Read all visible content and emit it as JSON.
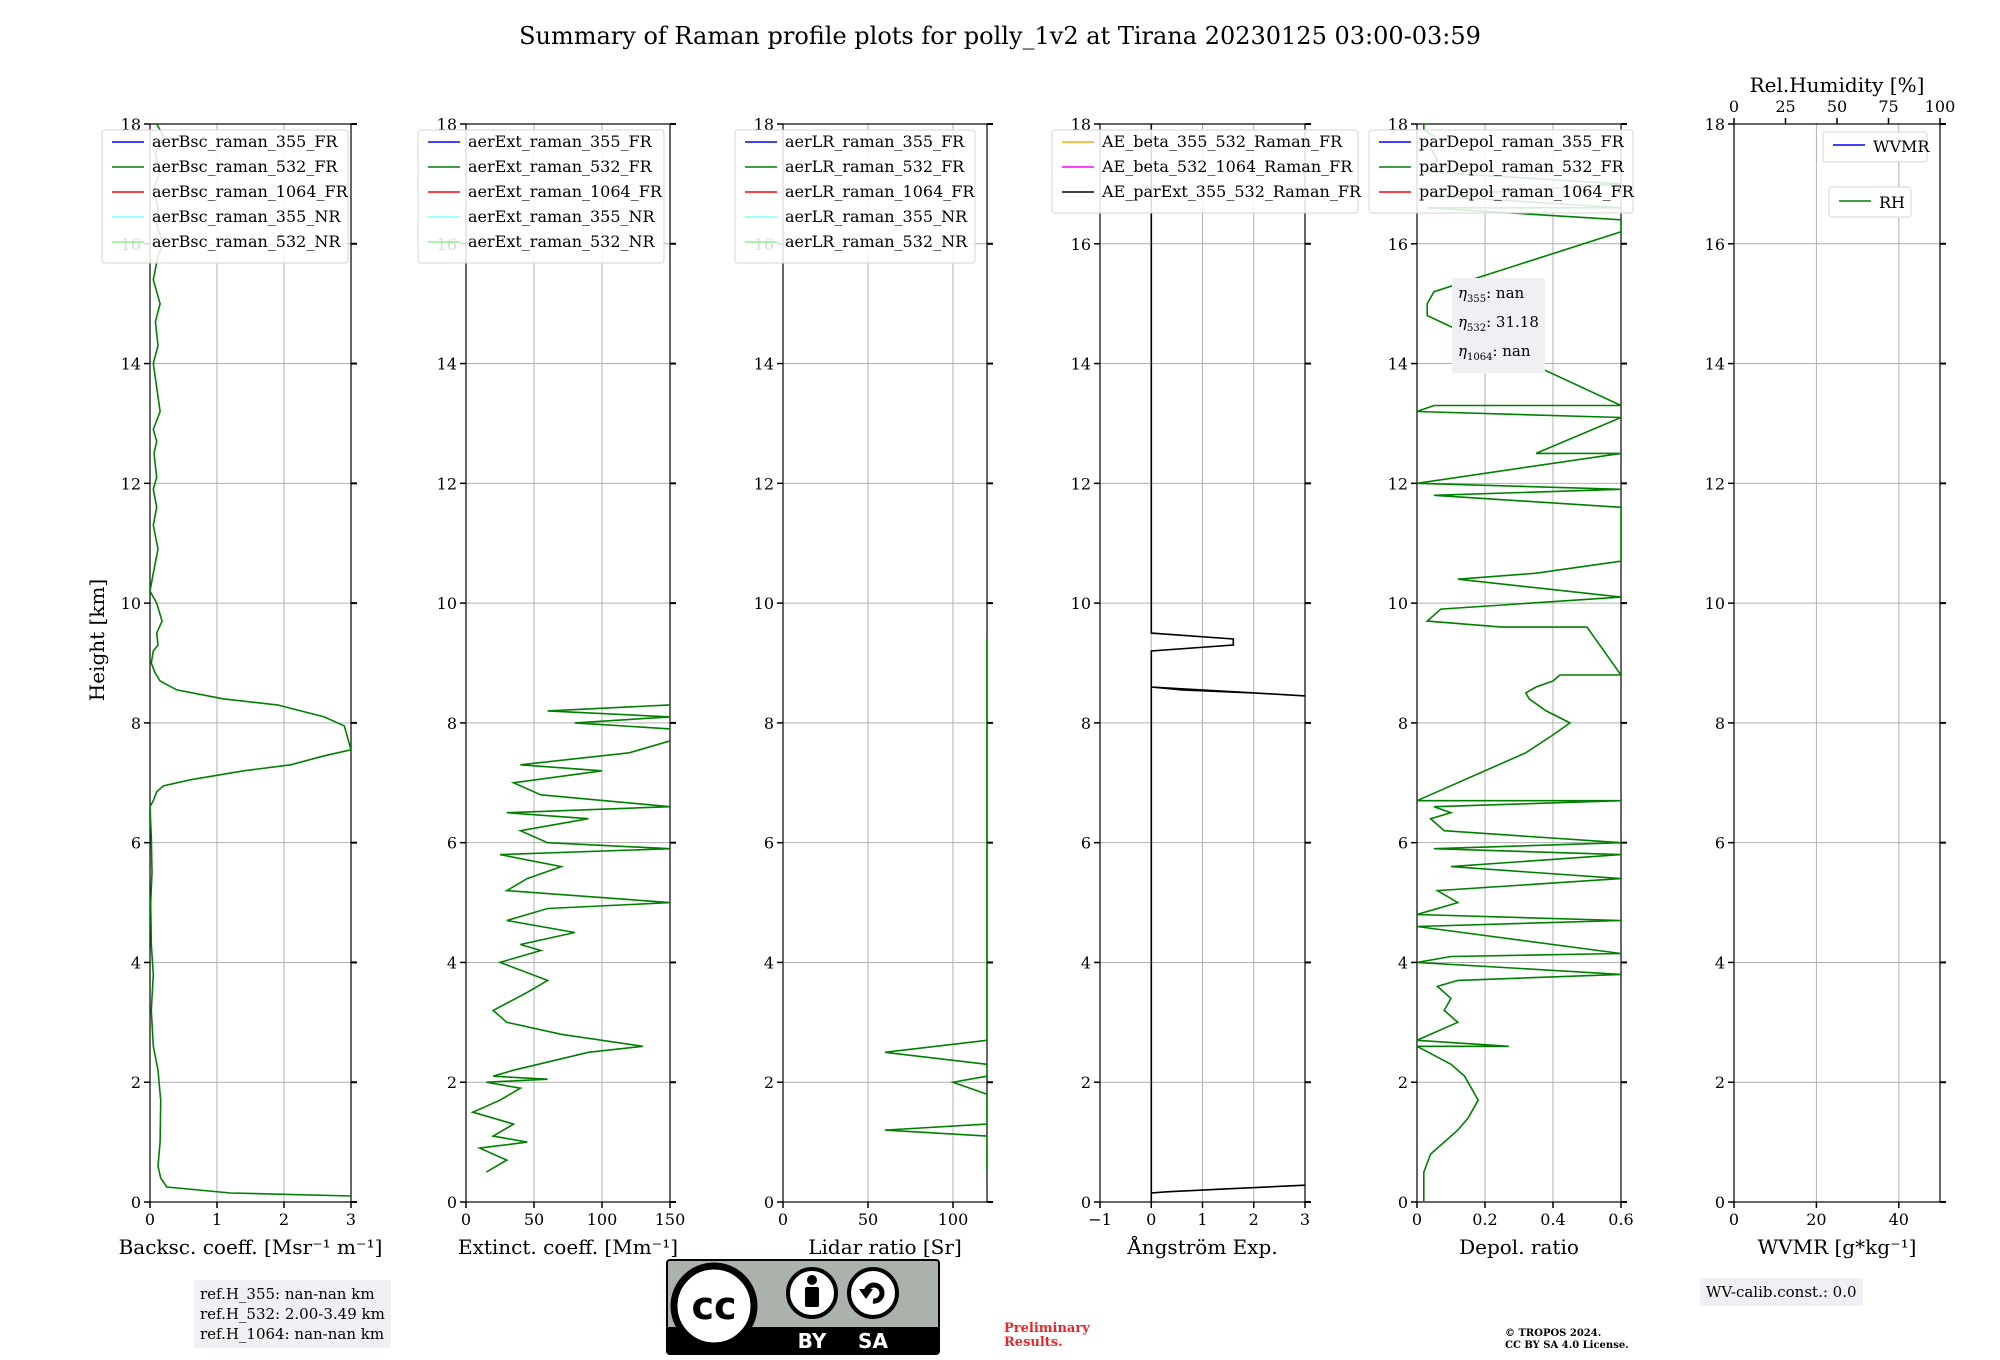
{
  "figure": {
    "title": "Summary of Raman profile plots for polly_1v2 at Tirana 20230125 03:00-03:59",
    "ylabel": "Height [km]",
    "ref_heights": [
      "ref.H_355: nan-nan km",
      "ref.H_532: 2.00-3.49 km",
      "ref.H_1064: nan-nan km"
    ],
    "wv_calib": "WV-calib.const.: 0.0",
    "preliminary": [
      "Preliminary",
      "Results."
    ],
    "copyright": [
      "© TROPOS 2024.",
      "CC BY SA 4.0 License."
    ],
    "license_badge": {
      "symbol": "cc",
      "by": "BY",
      "sa": "SA"
    },
    "depol_eta": [
      {
        "sym": "η",
        "sub": "355",
        "text": ": nan"
      },
      {
        "sym": "η",
        "sub": "532",
        "text": ": 31.18"
      },
      {
        "sym": "η",
        "sub": "1064",
        "text": ": nan"
      }
    ]
  },
  "colors": {
    "blue": "#0000ff",
    "green": "#008000",
    "red": "#ff0000",
    "cyan": "#7fffff",
    "lightgreen": "#90ee90",
    "orange": "#ffa500",
    "magenta": "#ff00ff",
    "black": "#000000"
  },
  "chart_data": [
    {
      "type": "line",
      "xlabel": "Backsc. coeff. [Msr⁻¹ m⁻¹]",
      "xlim": [
        0,
        3
      ],
      "xticks": [
        0,
        1,
        2,
        3
      ],
      "ylim": [
        0,
        18
      ],
      "yticks": [
        0,
        2,
        4,
        6,
        8,
        10,
        12,
        14,
        16,
        18
      ],
      "grid": true,
      "legend": "top-left",
      "series": [
        {
          "name": "aerBsc_raman_355_FR",
          "color": "#0000ff",
          "x": [],
          "y": []
        },
        {
          "name": "aerBsc_raman_532_FR",
          "color": "#008000",
          "x": [
            3.0,
            1.2,
            0.25,
            0.16,
            0.12,
            0.15,
            0.16,
            0.12,
            0.05,
            0.02,
            0.05,
            0.02,
            0.01,
            0.03,
            0.02,
            0.0,
            0.05,
            0.1,
            0.2,
            0.6,
            1.4,
            2.1,
            2.6,
            3.0,
            2.9,
            2.6,
            1.9,
            1.1,
            0.4,
            0.15,
            0.07,
            0.02,
            0.05,
            0.12,
            0.1,
            0.18,
            0.1,
            0.0,
            0.05,
            0.12,
            0.05,
            0.1,
            0.05,
            0.1,
            0.06,
            0.1,
            0.05,
            0.15,
            0.1,
            0.05,
            0.12,
            0.08,
            0.15,
            0.05,
            0.12,
            0.2,
            0.1,
            0.12,
            0.05,
            0.15,
            0.08,
            0.2,
            0.1
          ],
          "y": [
            0.1,
            0.15,
            0.25,
            0.4,
            0.6,
            1.0,
            1.7,
            2.2,
            2.6,
            3.2,
            3.8,
            4.3,
            5.0,
            5.5,
            6.1,
            6.6,
            6.7,
            6.85,
            6.95,
            7.05,
            7.2,
            7.3,
            7.45,
            7.55,
            7.95,
            8.1,
            8.3,
            8.4,
            8.55,
            8.7,
            8.85,
            9.0,
            9.2,
            9.3,
            9.5,
            9.7,
            10.0,
            10.2,
            10.5,
            10.9,
            11.3,
            11.6,
            11.9,
            12.1,
            12.5,
            12.7,
            12.9,
            13.2,
            13.6,
            14.0,
            14.3,
            14.7,
            15.0,
            15.4,
            15.8,
            16.0,
            16.3,
            16.6,
            16.9,
            17.2,
            17.5,
            17.8,
            18.0
          ]
        },
        {
          "name": "aerBsc_raman_1064_FR",
          "color": "#ff0000",
          "x": [],
          "y": []
        },
        {
          "name": "aerBsc_raman_355_NR",
          "color": "#7fffff",
          "x": [],
          "y": []
        },
        {
          "name": "aerBsc_raman_532_NR",
          "color": "#90ee90",
          "x": [],
          "y": []
        }
      ]
    },
    {
      "type": "line",
      "xlabel": "Extinct. coeff. [Mm⁻¹]",
      "xlim": [
        0,
        150
      ],
      "xticks": [
        0,
        50,
        100,
        150
      ],
      "ylim": [
        0,
        18
      ],
      "yticks": [
        0,
        2,
        4,
        6,
        8,
        10,
        12,
        14,
        16,
        18
      ],
      "grid": true,
      "legend": "top-left",
      "series": [
        {
          "name": "aerExt_raman_355_FR",
          "color": "#0000ff",
          "x": [],
          "y": []
        },
        {
          "name": "aerExt_raman_532_FR",
          "color": "#008000",
          "x": [
            15,
            30,
            10,
            45,
            20,
            35,
            5,
            25,
            40,
            15,
            60,
            20,
            35,
            90,
            130,
            70,
            30,
            20,
            45,
            60,
            25,
            55,
            40,
            80,
            30,
            60,
            150,
            30,
            45,
            70,
            25,
            150,
            60,
            40,
            90,
            30,
            150,
            55,
            35,
            100,
            40,
            120,
            150,
            150,
            80,
            150,
            60,
            150,
            150,
            150,
            150
          ],
          "y": [
            0.5,
            0.7,
            0.9,
            1.0,
            1.1,
            1.3,
            1.5,
            1.7,
            1.9,
            2.0,
            2.05,
            2.1,
            2.2,
            2.5,
            2.6,
            2.8,
            3.0,
            3.2,
            3.5,
            3.7,
            4.0,
            4.2,
            4.3,
            4.5,
            4.7,
            4.9,
            5.0,
            5.2,
            5.4,
            5.6,
            5.8,
            5.9,
            6.0,
            6.2,
            6.4,
            6.5,
            6.6,
            6.8,
            7.0,
            7.2,
            7.3,
            7.5,
            7.7,
            7.9,
            8.0,
            8.1,
            8.2,
            8.3,
            8.4,
            8.5,
            9.4
          ]
        },
        {
          "name": "aerExt_raman_1064_FR",
          "color": "#ff0000",
          "x": [],
          "y": []
        },
        {
          "name": "aerExt_raman_355_NR",
          "color": "#7fffff",
          "x": [],
          "y": []
        },
        {
          "name": "aerExt_raman_532_NR",
          "color": "#90ee90",
          "x": [],
          "y": []
        }
      ]
    },
    {
      "type": "line",
      "xlabel": "Lidar ratio [Sr]",
      "xlim": [
        0,
        120
      ],
      "xticks": [
        0,
        50,
        100
      ],
      "ylim": [
        0,
        18
      ],
      "yticks": [
        0,
        2,
        4,
        6,
        8,
        10,
        12,
        14,
        16,
        18
      ],
      "grid": true,
      "legend": "top-left",
      "series": [
        {
          "name": "aerLR_raman_355_FR",
          "color": "#0000ff",
          "x": [],
          "y": []
        },
        {
          "name": "aerLR_raman_532_FR",
          "color": "#008000",
          "x": [
            120,
            120,
            120,
            60,
            120,
            120,
            120,
            120,
            100,
            120,
            120,
            60,
            120,
            120,
            120,
            120,
            120,
            120,
            120,
            120,
            120,
            120,
            120,
            120,
            120,
            120,
            120,
            120,
            120,
            120,
            120,
            120,
            120,
            120,
            120,
            120,
            120,
            120,
            120,
            120,
            120,
            120,
            120,
            120,
            120,
            120,
            120,
            120
          ],
          "y": [
            0.5,
            0.6,
            1.1,
            1.2,
            1.3,
            1.5,
            1.6,
            1.8,
            2.0,
            2.1,
            2.3,
            2.5,
            2.7,
            2.9,
            3.0,
            3.1,
            3.3,
            3.5,
            3.7,
            3.9,
            4.1,
            4.2,
            4.4,
            4.6,
            4.8,
            5.0,
            5.1,
            5.3,
            5.5,
            5.6,
            5.8,
            5.9,
            6.0,
            6.1,
            6.2,
            6.4,
            6.5,
            6.6,
            6.9,
            7.2,
            7.4,
            7.6,
            7.8,
            8.0,
            8.1,
            8.2,
            8.3,
            9.4
          ]
        },
        {
          "name": "aerLR_raman_1064_FR",
          "color": "#ff0000",
          "x": [],
          "y": []
        },
        {
          "name": "aerLR_raman_355_NR",
          "color": "#7fffff",
          "x": [],
          "y": []
        },
        {
          "name": "aerLR_raman_532_NR",
          "color": "#90ee90",
          "x": [],
          "y": []
        }
      ]
    },
    {
      "type": "line",
      "xlabel": "Ångström Exp.",
      "xlim": [
        -1,
        3
      ],
      "xticks": [
        -1,
        0,
        1,
        2,
        3
      ],
      "ylim": [
        0,
        18
      ],
      "yticks": [
        0,
        2,
        4,
        6,
        8,
        10,
        12,
        14,
        16,
        18
      ],
      "grid": true,
      "legend": "top-left",
      "series": [
        {
          "name": "AE_beta_355_532_Raman_FR",
          "color": "#ffa500",
          "x": [],
          "y": []
        },
        {
          "name": "AE_beta_532_1064_Raman_FR",
          "color": "#ff00ff",
          "x": [],
          "y": []
        },
        {
          "name": "AE_parExt_355_532_Raman_FR",
          "color": "#000000",
          "x": [
            3.0,
            1.5,
            0.3,
            0.0,
            0.0,
            0.0,
            0.0,
            0.6,
            2.0,
            3.0,
            3.0,
            0.0,
            0.0,
            1.6,
            1.6,
            0.0,
            0.0,
            0.0
          ],
          "y": [
            0.28,
            0.22,
            0.17,
            0.15,
            0.0,
            0.15,
            8.6,
            8.55,
            8.5,
            8.45,
            8.45,
            8.6,
            9.2,
            9.3,
            9.4,
            9.5,
            9.5,
            18.0
          ]
        }
      ]
    },
    {
      "type": "line",
      "xlabel": "Depol. ratio",
      "xlim": [
        0.0,
        0.6
      ],
      "xticks": [
        0.0,
        0.2,
        0.4,
        0.6
      ],
      "ylim": [
        0,
        18
      ],
      "yticks": [
        0,
        2,
        4,
        6,
        8,
        10,
        12,
        14,
        16,
        18
      ],
      "grid": true,
      "legend": "top-left",
      "series": [
        {
          "name": "parDepol_raman_355_FR",
          "color": "#0000ff",
          "x": [],
          "y": []
        },
        {
          "name": "parDepol_raman_532_FR",
          "color": "#008000",
          "x": [
            0.02,
            0.02,
            0.04,
            0.08,
            0.12,
            0.15,
            0.18,
            0.16,
            0.14,
            0.1,
            0.05,
            0.0,
            0.27,
            0.0,
            0.12,
            0.08,
            0.1,
            0.06,
            0.12,
            0.6,
            0.0,
            0.1,
            0.6,
            0.0,
            0.6,
            0.0,
            0.12,
            0.06,
            0.6,
            0.1,
            0.6,
            0.05,
            0.6,
            0.08,
            0.04,
            0.1,
            0.05,
            0.6,
            0.0,
            0.32,
            0.4,
            0.45,
            0.38,
            0.33,
            0.32,
            0.35,
            0.4,
            0.42,
            0.6,
            0.5,
            0.25,
            0.03,
            0.07,
            0.6,
            0.12,
            0.35,
            0.6,
            0.6,
            0.05,
            0.6,
            0.0,
            0.6,
            0.35,
            0.6,
            0.0,
            0.05,
            0.6,
            0.03,
            0.03,
            0.05,
            0.6,
            0.6,
            0.03,
            0.6,
            0.05,
            0.6,
            0.03,
            0.06,
            0.04,
            0.05,
            0.02,
            0.02
          ],
          "y": [
            0.0,
            0.5,
            0.8,
            1.0,
            1.2,
            1.4,
            1.7,
            1.9,
            2.1,
            2.3,
            2.45,
            2.6,
            2.6,
            2.7,
            3.0,
            3.2,
            3.4,
            3.6,
            3.7,
            3.8,
            4.0,
            4.1,
            4.15,
            4.6,
            4.7,
            4.8,
            5.0,
            5.2,
            5.4,
            5.6,
            5.8,
            5.9,
            6.0,
            6.2,
            6.4,
            6.5,
            6.6,
            6.7,
            6.7,
            7.5,
            7.8,
            8.0,
            8.2,
            8.4,
            8.5,
            8.6,
            8.7,
            8.8,
            8.8,
            9.6,
            9.6,
            9.7,
            9.9,
            10.1,
            10.4,
            10.5,
            10.7,
            11.6,
            11.8,
            11.9,
            12.0,
            12.5,
            12.5,
            13.1,
            13.2,
            13.3,
            13.3,
            14.8,
            15.0,
            15.2,
            16.2,
            16.4,
            16.6,
            16.6,
            16.8,
            17.0,
            17.2,
            17.4,
            17.6,
            17.8,
            17.9,
            18.0
          ]
        },
        {
          "name": "parDepol_raman_1064_FR",
          "color": "#ff0000",
          "x": [],
          "y": []
        }
      ]
    },
    {
      "type": "line",
      "xlabel": "WVMR [g*kg⁻¹]",
      "xlim": [
        0,
        50
      ],
      "xticks": [
        0,
        20,
        40
      ],
      "x2label": "Rel.Humidity [%]",
      "x2lim": [
        0,
        100
      ],
      "x2ticks": [
        0,
        25,
        50,
        75,
        100
      ],
      "ylim": [
        0,
        18
      ],
      "yticks": [
        0,
        2,
        4,
        6,
        8,
        10,
        12,
        14,
        16,
        18
      ],
      "grid": true,
      "legend": "top-right",
      "series": [
        {
          "name": "WVMR",
          "color": "#0000ff",
          "x": [],
          "y": []
        },
        {
          "name": "RH",
          "color": "#008000",
          "x": [],
          "y": []
        }
      ]
    }
  ]
}
